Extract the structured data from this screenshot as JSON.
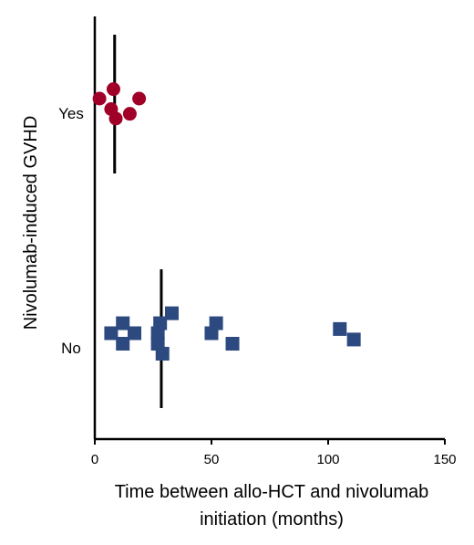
{
  "chart_data": {
    "type": "scatter",
    "xlabel": [
      "Time between allo-HCT and nivolumab",
      "initiation (months)"
    ],
    "ylabel": "Nivolumab-induced GVHD",
    "xlim": [
      0,
      150
    ],
    "xticks": [
      "0",
      "50",
      "100",
      "150"
    ],
    "categories": [
      "Yes",
      "No"
    ],
    "grid": false,
    "series": [
      {
        "category": "Yes",
        "marker": "circle",
        "color": "#a00028",
        "points": [
          {
            "x": 2,
            "y": 0.0
          },
          {
            "x": 8,
            "y": 0.9
          },
          {
            "x": 7,
            "y": -1.0
          },
          {
            "x": 9,
            "y": -1.9
          },
          {
            "x": 15,
            "y": -1.45
          },
          {
            "x": 19,
            "y": 0.0
          }
        ],
        "median": 8.5
      },
      {
        "category": "No",
        "marker": "square",
        "color": "#2c4a80",
        "points": [
          {
            "x": 7,
            "y": 0.0
          },
          {
            "x": 12,
            "y": 0.95
          },
          {
            "x": 12,
            "y": -1.0
          },
          {
            "x": 17,
            "y": 0.0
          },
          {
            "x": 27,
            "y": -1.0
          },
          {
            "x": 27,
            "y": 0.0
          },
          {
            "x": 28,
            "y": 0.95
          },
          {
            "x": 29,
            "y": -1.95
          },
          {
            "x": 33,
            "y": 1.9
          },
          {
            "x": 50,
            "y": 0.0
          },
          {
            "x": 52,
            "y": 0.95
          },
          {
            "x": 59,
            "y": -1.0
          },
          {
            "x": 105,
            "y": 0.4
          },
          {
            "x": 111,
            "y": -0.6
          }
        ],
        "median": 28.5
      }
    ]
  }
}
